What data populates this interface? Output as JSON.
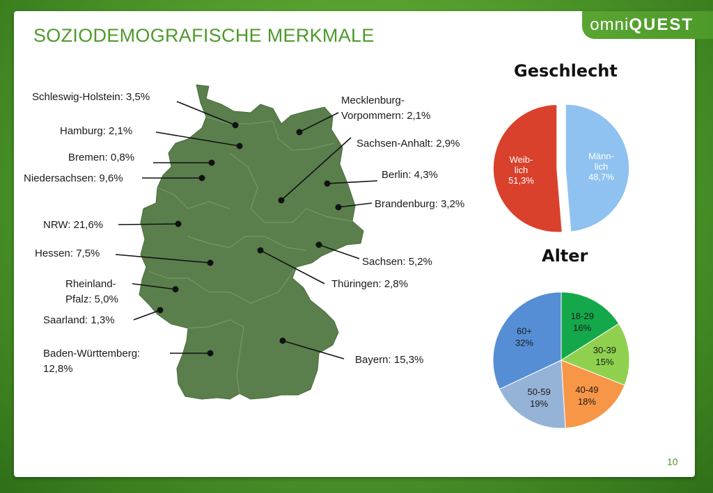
{
  "page": {
    "title": "SOZIODEMOGRAFISCHE MERKMALE",
    "logo": {
      "light": "omni",
      "bold": "QUEST"
    },
    "page_number": "10"
  },
  "colors": {
    "accent_green": "#4c9a2a",
    "map_fill": "#5a7f4c",
    "female": "#d9412d",
    "male": "#8fc2f0",
    "age_18_29": "#14a84a",
    "age_30_39": "#8fd14f",
    "age_40_49": "#f79646",
    "age_50_59": "#95b3d7",
    "age_60_plus": "#558ed5"
  },
  "chart_data": [
    {
      "type": "map",
      "title": "",
      "regions": [
        {
          "key": "sh",
          "label": "Schleswig-Holstein: 3,5%",
          "name": "Schleswig-Holstein",
          "value": 3.5
        },
        {
          "key": "hh",
          "label": "Hamburg: 2,1%",
          "name": "Hamburg",
          "value": 2.1
        },
        {
          "key": "hb",
          "label": "Bremen: 0,8%",
          "name": "Bremen",
          "value": 0.8
        },
        {
          "key": "ni",
          "label": "Niedersachsen: 9,6%",
          "name": "Niedersachsen",
          "value": 9.6
        },
        {
          "key": "nrw",
          "label": "NRW: 21,6%",
          "name": "NRW",
          "value": 21.6
        },
        {
          "key": "he",
          "label": "Hessen: 7,5%",
          "name": "Hessen",
          "value": 7.5
        },
        {
          "key": "rp",
          "label_lines": [
            "Rheinland-",
            "Pfalz: 5,0%"
          ],
          "name": "Rheinland-Pfalz",
          "value": 5.0
        },
        {
          "key": "sl",
          "label": "Saarland: 1,3%",
          "name": "Saarland",
          "value": 1.3
        },
        {
          "key": "bw",
          "label_lines": [
            "Baden-Württemberg:",
            "12,8%"
          ],
          "name": "Baden-Württemberg",
          "value": 12.8
        },
        {
          "key": "mv",
          "label_lines": [
            "Mecklenburg-",
            "Vorpommern: 2,1%"
          ],
          "name": "Mecklenburg-Vorpommern",
          "value": 2.1
        },
        {
          "key": "st",
          "label": "Sachsen-Anhalt: 2,9%",
          "name": "Sachsen-Anhalt",
          "value": 2.9
        },
        {
          "key": "be",
          "label": "Berlin: 4,3%",
          "name": "Berlin",
          "value": 4.3
        },
        {
          "key": "bb",
          "label": "Brandenburg: 3,2%",
          "name": "Brandenburg",
          "value": 3.2
        },
        {
          "key": "sn",
          "label": "Sachsen: 5,2%",
          "name": "Sachsen",
          "value": 5.2
        },
        {
          "key": "th",
          "label": "Thüringen: 2,8%",
          "name": "Thüringen",
          "value": 2.8
        },
        {
          "key": "by",
          "label": "Bayern: 15,3%",
          "name": "Bayern",
          "value": 15.3
        }
      ]
    },
    {
      "type": "pie",
      "title": "Geschlecht",
      "slices": [
        {
          "key": "male",
          "label_lines": [
            "Männ-",
            "lich",
            "48,7%"
          ],
          "name": "Männlich",
          "value": 48.7
        },
        {
          "key": "female",
          "label_lines": [
            "Weib-",
            "lich",
            "51,3%"
          ],
          "name": "Weiblich",
          "value": 51.3
        }
      ]
    },
    {
      "type": "pie",
      "title": "Alter",
      "slices": [
        {
          "key": "a1829",
          "label_lines": [
            "18-29",
            "16%"
          ],
          "name": "18-29",
          "value": 16
        },
        {
          "key": "a3039",
          "label_lines": [
            "30-39",
            "15%"
          ],
          "name": "30-39",
          "value": 15
        },
        {
          "key": "a4049",
          "label_lines": [
            "40-49",
            "18%"
          ],
          "name": "40-49",
          "value": 18
        },
        {
          "key": "a5059",
          "label_lines": [
            "50-59",
            "19%"
          ],
          "name": "50-59",
          "value": 19
        },
        {
          "key": "a60",
          "label_lines": [
            "60+",
            "32%"
          ],
          "name": "60+",
          "value": 32
        }
      ]
    }
  ]
}
